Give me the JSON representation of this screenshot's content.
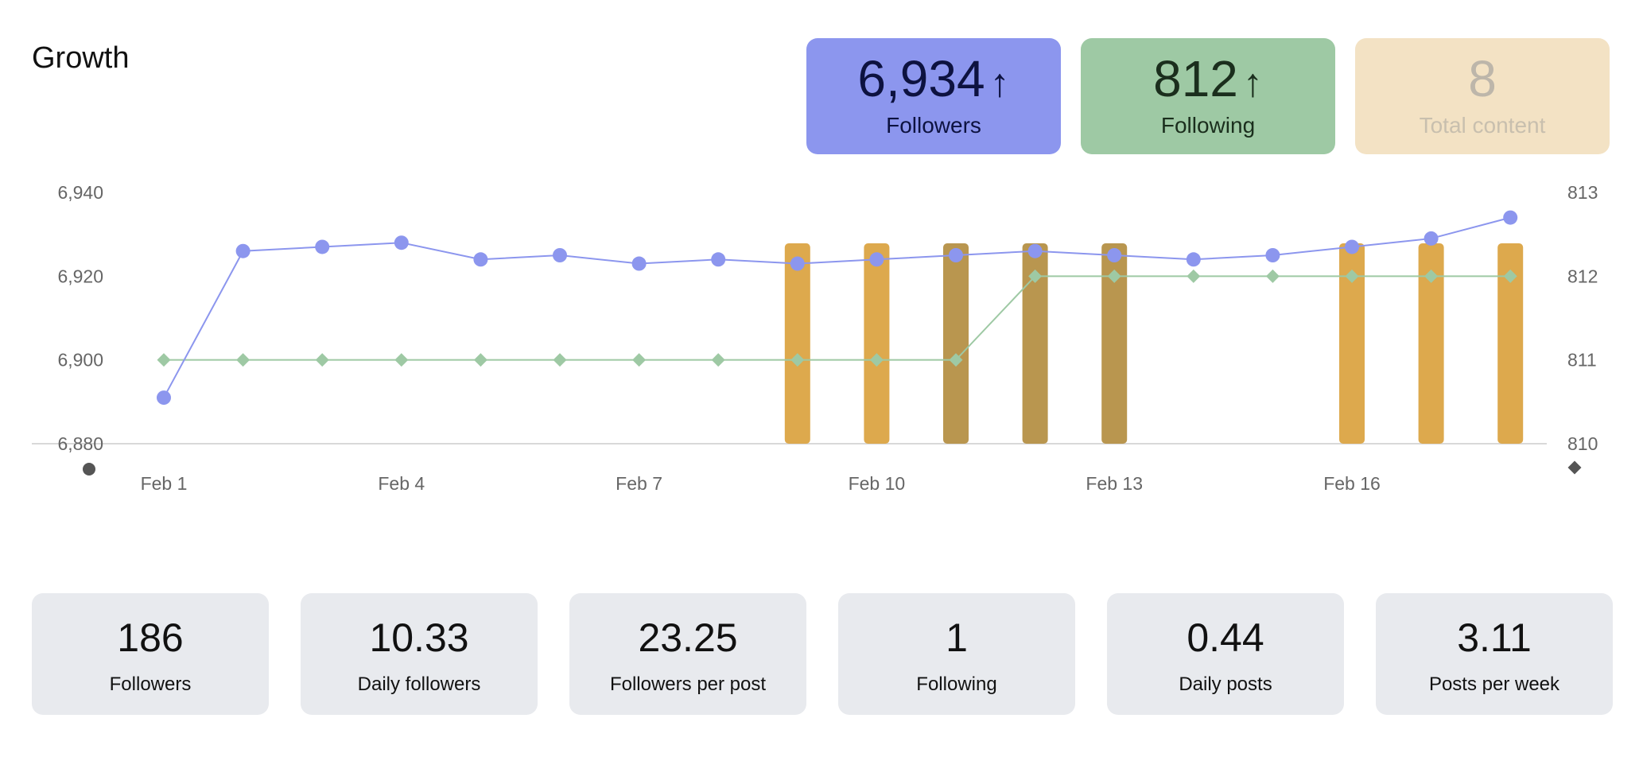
{
  "title": "Growth",
  "kpis": {
    "followers": {
      "value": "6,934",
      "arrow": "↑",
      "label": "Followers",
      "color": "#8c96ee"
    },
    "following": {
      "value": "812",
      "arrow": "↑",
      "label": "Following",
      "color": "#9ec9a4"
    },
    "content": {
      "value": "8",
      "label": "Total content",
      "color": "#f3e2c4"
    }
  },
  "stats": [
    {
      "value": "186",
      "label": "Followers"
    },
    {
      "value": "10.33",
      "label": "Daily followers"
    },
    {
      "value": "23.25",
      "label": "Followers per post"
    },
    {
      "value": "1",
      "label": "Following"
    },
    {
      "value": "0.44",
      "label": "Daily posts"
    },
    {
      "value": "3.11",
      "label": "Posts per week"
    }
  ],
  "chart_data": {
    "type": "line",
    "categories": [
      "Feb 1",
      "Feb 2",
      "Feb 3",
      "Feb 4",
      "Feb 5",
      "Feb 6",
      "Feb 7",
      "Feb 8",
      "Feb 9",
      "Feb 10",
      "Feb 11",
      "Feb 12",
      "Feb 13",
      "Feb 14",
      "Feb 15",
      "Feb 16",
      "Feb 17",
      "Feb 18"
    ],
    "x_tick_labels": [
      "Feb 1",
      "Feb 4",
      "Feb 7",
      "Feb 10",
      "Feb 13",
      "Feb 16"
    ],
    "x_tick_indices": [
      0,
      3,
      6,
      9,
      12,
      15
    ],
    "y_left": {
      "ticks": [
        "6,940",
        "6,920",
        "6,900",
        "6,880"
      ],
      "ylim": [
        6880,
        6940
      ]
    },
    "y_right": {
      "ticks": [
        "813",
        "812",
        "811",
        "810"
      ],
      "ylim": [
        810,
        813
      ]
    },
    "series": [
      {
        "name": "Followers",
        "axis": "left",
        "marker": "circle",
        "color": "#8c96ee",
        "values": [
          6891,
          6926,
          6927,
          6928,
          6924,
          6925,
          6923,
          6924,
          6923,
          6924,
          6925,
          6926,
          6925,
          6924,
          6925,
          6927,
          6929,
          6934
        ]
      },
      {
        "name": "Following",
        "axis": "right",
        "marker": "diamond",
        "color": "#9ec9a4",
        "values": [
          811,
          811,
          811,
          811,
          811,
          811,
          811,
          811,
          811,
          811,
          811,
          812,
          812,
          812,
          812,
          812,
          812,
          812
        ]
      },
      {
        "name": "Content",
        "type": "bar",
        "color": "#dda94d",
        "alt_color": "#b9964f",
        "present": [
          false,
          false,
          false,
          false,
          false,
          false,
          false,
          false,
          true,
          true,
          true,
          true,
          true,
          false,
          false,
          true,
          true,
          true
        ],
        "dark": [
          false,
          false,
          false,
          false,
          false,
          false,
          false,
          false,
          false,
          false,
          true,
          true,
          true,
          false,
          false,
          false,
          false,
          false
        ]
      }
    ],
    "legend_left_marker": "circle",
    "legend_right_marker": "diamond"
  }
}
